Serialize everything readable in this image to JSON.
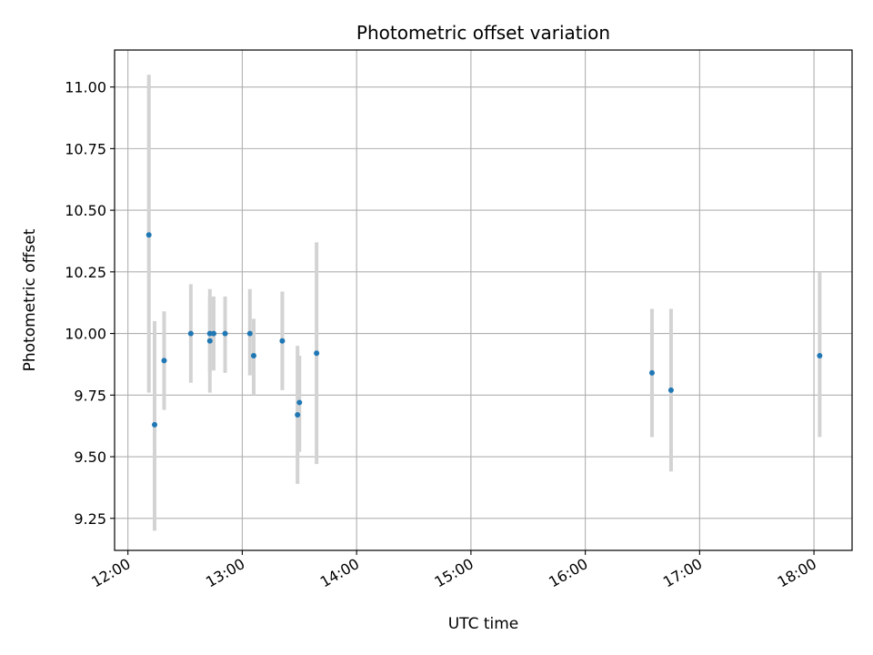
{
  "chart_data": {
    "type": "scatter",
    "title": "Photometric offset variation",
    "xlabel": "UTC time",
    "ylabel": "Photometric offset",
    "x_unit": "UTC time of day (HH:MM)",
    "xlim": [
      "11:53",
      "18:20"
    ],
    "ylim": [
      9.12,
      11.15
    ],
    "grid": true,
    "legend": "none",
    "x_ticks": [
      "12:00",
      "13:00",
      "14:00",
      "15:00",
      "16:00",
      "17:00",
      "18:00"
    ],
    "y_ticks": [
      "9.25",
      "9.50",
      "9.75",
      "10.00",
      "10.25",
      "10.50",
      "10.75",
      "11.00"
    ],
    "marker_color": "#1f77b4",
    "errorbar_color": "#d3d3d3",
    "points": [
      {
        "x": "12:11",
        "y": 10.4,
        "ylow": 9.76,
        "yhigh": 11.05
      },
      {
        "x": "12:14",
        "y": 9.63,
        "ylow": 9.2,
        "yhigh": 10.05
      },
      {
        "x": "12:19",
        "y": 9.89,
        "ylow": 9.69,
        "yhigh": 10.09
      },
      {
        "x": "12:33",
        "y": 10.0,
        "ylow": 9.8,
        "yhigh": 10.2
      },
      {
        "x": "12:43",
        "y": 9.97,
        "ylow": 9.76,
        "yhigh": 10.18
      },
      {
        "x": "12:43",
        "y": 10.0,
        "ylow": 9.84,
        "yhigh": 10.15
      },
      {
        "x": "12:45",
        "y": 10.0,
        "ylow": 9.85,
        "yhigh": 10.15
      },
      {
        "x": "12:51",
        "y": 10.0,
        "ylow": 9.84,
        "yhigh": 10.15
      },
      {
        "x": "13:04",
        "y": 10.0,
        "ylow": 9.83,
        "yhigh": 10.18
      },
      {
        "x": "13:06",
        "y": 9.91,
        "ylow": 9.75,
        "yhigh": 10.06
      },
      {
        "x": "13:21",
        "y": 9.97,
        "ylow": 9.77,
        "yhigh": 10.17
      },
      {
        "x": "13:29",
        "y": 9.67,
        "ylow": 9.39,
        "yhigh": 9.95
      },
      {
        "x": "13:30",
        "y": 9.72,
        "ylow": 9.52,
        "yhigh": 9.91
      },
      {
        "x": "13:39",
        "y": 9.92,
        "ylow": 9.47,
        "yhigh": 10.37
      },
      {
        "x": "16:35",
        "y": 9.84,
        "ylow": 9.58,
        "yhigh": 10.1
      },
      {
        "x": "16:45",
        "y": 9.77,
        "ylow": 9.44,
        "yhigh": 10.1
      },
      {
        "x": "18:03",
        "y": 9.91,
        "ylow": 9.58,
        "yhigh": 10.25
      }
    ]
  }
}
